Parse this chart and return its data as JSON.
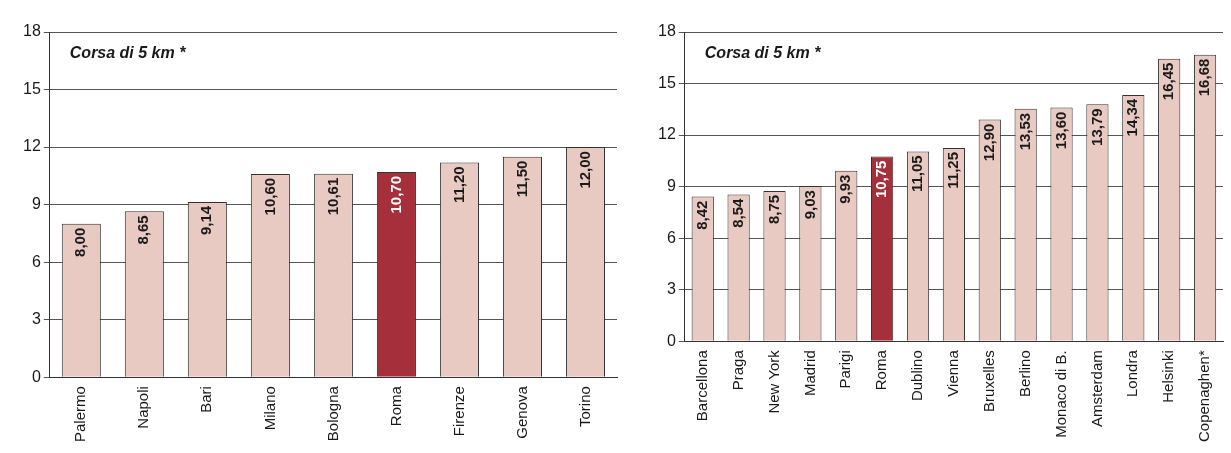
{
  "chart_data": [
    {
      "type": "bar",
      "categories": [
        "Palermo",
        "Napoli",
        "Bari",
        "Milano",
        "Bologna",
        "Roma",
        "Firenze",
        "Genova",
        "Torino"
      ],
      "values": [
        8.0,
        8.65,
        9.14,
        10.6,
        10.61,
        10.7,
        11.2,
        11.5,
        12.0
      ],
      "value_labels": [
        "8,00",
        "8,65",
        "9,14",
        "10,60",
        "10,61",
        "10,70",
        "11,20",
        "11,50",
        "12,00"
      ],
      "colors": [
        "#e8cac2",
        "#e8cac2",
        "#e8cac2",
        "#e8cac2",
        "#e8cac2",
        "#a52f3b",
        "#e8cac2",
        "#e8cac2",
        "#e8cac2"
      ],
      "ylim": [
        0,
        18
      ],
      "yticks": [
        0,
        3,
        6,
        9,
        12,
        15,
        18
      ],
      "grid": "y",
      "legend": false,
      "annotations": [
        "Corsa di 5 km *"
      ]
    },
    {
      "type": "bar",
      "categories": [
        "Barcellona",
        "Praga",
        "New York",
        "Madrid",
        "Parigi",
        "Roma",
        "Dublino",
        "Vienna",
        "Bruxelles",
        "Berlino",
        "Monaco di B.",
        "Amsterdam",
        "Londra",
        "Helsinki",
        "Copenaghen*"
      ],
      "values": [
        8.42,
        8.54,
        8.75,
        9.03,
        9.93,
        10.75,
        11.05,
        11.25,
        12.9,
        13.53,
        13.6,
        13.79,
        14.34,
        16.45,
        16.68
      ],
      "value_labels": [
        "8,42",
        "8,54",
        "8,75",
        "9,03",
        "9,93",
        "10,75",
        "11,05",
        "11,25",
        "12,90",
        "13,53",
        "13,60",
        "13,79",
        "14,34",
        "16,45",
        "16,68"
      ],
      "colors": [
        "#e8cac2",
        "#e8cac2",
        "#e8cac2",
        "#e8cac2",
        "#e8cac2",
        "#a52f3b",
        "#e8cac2",
        "#e8cac2",
        "#e8cac2",
        "#e8cac2",
        "#e8cac2",
        "#e8cac2",
        "#e8cac2",
        "#e8cac2",
        "#e8cac2"
      ],
      "ylim": [
        0,
        18
      ],
      "yticks": [
        0,
        3,
        6,
        9,
        12,
        15,
        18
      ],
      "grid": "y",
      "legend": false,
      "annotations": [
        "Corsa di 5 km *"
      ]
    }
  ]
}
